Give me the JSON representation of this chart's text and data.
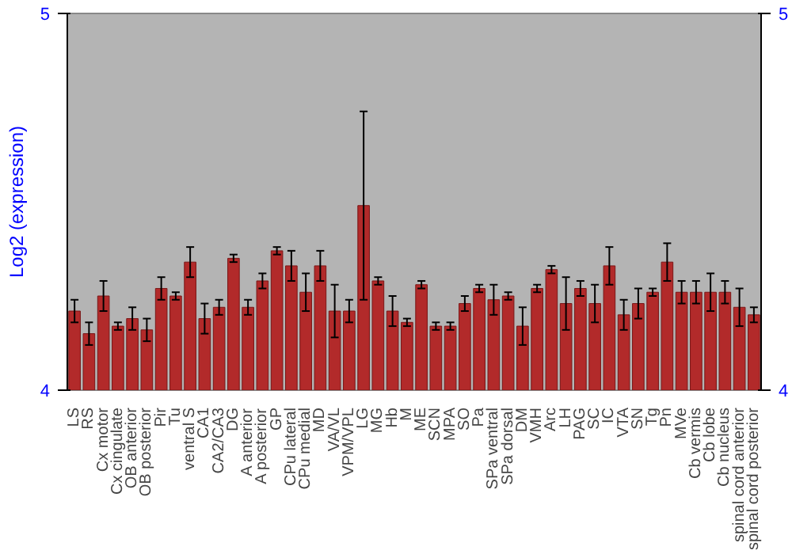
{
  "chart_data": {
    "type": "bar",
    "ylabel": "Log2 (expression)",
    "categories": [
      "LS",
      "RS",
      "Cx motor",
      "Cx cingulate",
      "OB anterior",
      "OB posterior",
      "Pir",
      "Tu",
      "ventral S",
      "CA1",
      "CA2/CA3",
      "DG",
      "A anterior",
      "A posterior",
      "GP",
      "CPu lateral",
      "CPu medial",
      "MD",
      "VA/VL",
      "VPM/VPL",
      "LG",
      "MG",
      "Hb",
      "M",
      "ME",
      "SCN",
      "MPA",
      "SO",
      "Pa",
      "SPa ventral",
      "SPa dorsal",
      "DM",
      "VMH",
      "Arc",
      "LH",
      "PAG",
      "SC",
      "IC",
      "VTA",
      "SN",
      "Tg",
      "Pn",
      "MVe",
      "Cb vermis",
      "Cb lobe",
      "Cb nucleus",
      "spinal cord anterior",
      "spinal cord posterior"
    ],
    "values": [
      4.21,
      4.15,
      4.25,
      4.17,
      4.19,
      4.16,
      4.27,
      4.25,
      4.34,
      4.19,
      4.22,
      4.35,
      4.22,
      4.29,
      4.37,
      4.33,
      4.26,
      4.33,
      4.21,
      4.21,
      4.49,
      4.29,
      4.21,
      4.18,
      4.28,
      4.17,
      4.17,
      4.23,
      4.27,
      4.24,
      4.25,
      4.17,
      4.27,
      4.32,
      4.23,
      4.27,
      4.23,
      4.33,
      4.2,
      4.23,
      4.26,
      4.34,
      4.26,
      4.26,
      4.26,
      4.26,
      4.22,
      4.2
    ],
    "errors": [
      0.03,
      0.03,
      0.04,
      0.01,
      0.03,
      0.03,
      0.03,
      0.01,
      0.04,
      0.04,
      0.02,
      0.01,
      0.02,
      0.02,
      0.01,
      0.04,
      0.05,
      0.04,
      0.07,
      0.03,
      0.25,
      0.01,
      0.04,
      0.01,
      0.01,
      0.01,
      0.01,
      0.02,
      0.01,
      0.04,
      0.01,
      0.05,
      0.01,
      0.01,
      0.07,
      0.02,
      0.05,
      0.05,
      0.04,
      0.04,
      0.01,
      0.05,
      0.03,
      0.03,
      0.05,
      0.03,
      0.05,
      0.02
    ],
    "color": "#b22a2a",
    "ylim": [
      4,
      5
    ],
    "yticks": [
      4,
      5
    ],
    "y2lim": [
      4,
      5
    ],
    "y2ticks": [
      4,
      5
    ],
    "grid": false
  }
}
